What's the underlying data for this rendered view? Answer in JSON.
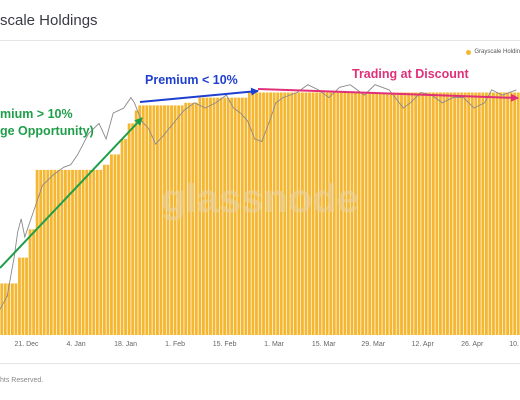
{
  "header": {
    "title": "scale Holdings"
  },
  "footer": {
    "text": "hts Reserved."
  },
  "watermark": "glassnode",
  "colors": {
    "bars": "#f5b731",
    "line": "#8a8a8a",
    "arrow_green": "#1f9e4a",
    "arrow_blue": "#1f3fcf",
    "arrow_pink": "#e0307a"
  },
  "annotations": [
    {
      "id": "premium-gt-10",
      "lines": [
        "mium > 10%",
        "ge Opportunity)"
      ],
      "color": "#1f9e4a"
    },
    {
      "id": "premium-lt-10",
      "lines": [
        "Premium < 10%"
      ],
      "color": "#1f3fcf"
    },
    {
      "id": "discount",
      "lines": [
        "Trading at Discount"
      ],
      "color": "#e0307a"
    }
  ],
  "chart_data": {
    "type": "bar",
    "legend": {
      "entries": [
        "Grayscale Holdin"
      ],
      "placement": "top-right"
    },
    "x_tick_labels": [
      "21. Dec",
      "4. Jan",
      "18. Jan",
      "1. Feb",
      "15. Feb",
      "1. Mar",
      "15. Mar",
      "29. Mar",
      "12. Apr",
      "26. Apr",
      "10."
    ],
    "x_day_range": [
      0,
      146
    ],
    "x_tick_days": [
      7,
      21,
      35,
      49,
      63,
      77,
      91,
      105,
      119,
      133,
      147
    ],
    "y_scale": "relative (no y-axis labels visible)",
    "bar_levels": [
      {
        "from_day": 0,
        "to_day": 5,
        "level": 0.2
      },
      {
        "from_day": 5,
        "to_day": 8,
        "level": 0.3
      },
      {
        "from_day": 8,
        "to_day": 10,
        "level": 0.41
      },
      {
        "from_day": 10,
        "to_day": 29,
        "level": 0.64
      },
      {
        "from_day": 29,
        "to_day": 31,
        "level": 0.66
      },
      {
        "from_day": 31,
        "to_day": 34,
        "level": 0.7
      },
      {
        "from_day": 34,
        "to_day": 36,
        "level": 0.76
      },
      {
        "from_day": 36,
        "to_day": 38,
        "level": 0.82
      },
      {
        "from_day": 38,
        "to_day": 39,
        "level": 0.87
      },
      {
        "from_day": 39,
        "to_day": 52,
        "level": 0.89
      },
      {
        "from_day": 52,
        "to_day": 56,
        "level": 0.9
      },
      {
        "from_day": 56,
        "to_day": 70,
        "level": 0.92
      },
      {
        "from_day": 70,
        "to_day": 146,
        "level": 0.94
      }
    ],
    "line_series": [
      [
        0,
        0.1
      ],
      [
        2,
        0.15
      ],
      [
        4,
        0.3
      ],
      [
        5,
        0.4
      ],
      [
        6,
        0.45
      ],
      [
        7,
        0.38
      ],
      [
        8,
        0.42
      ],
      [
        10,
        0.5
      ],
      [
        12,
        0.58
      ],
      [
        15,
        0.62
      ],
      [
        18,
        0.65
      ],
      [
        20,
        0.66
      ],
      [
        22,
        0.7
      ],
      [
        25,
        0.78
      ],
      [
        28,
        0.82
      ],
      [
        30,
        0.76
      ],
      [
        32,
        0.86
      ],
      [
        35,
        0.88
      ],
      [
        37,
        0.92
      ],
      [
        38,
        0.9
      ],
      [
        40,
        0.83
      ],
      [
        42,
        0.8
      ],
      [
        44,
        0.74
      ],
      [
        46,
        0.77
      ],
      [
        49,
        0.82
      ],
      [
        52,
        0.87
      ],
      [
        55,
        0.9
      ],
      [
        58,
        0.88
      ],
      [
        61,
        0.9
      ],
      [
        64,
        0.93
      ],
      [
        66,
        0.88
      ],
      [
        68,
        0.86
      ],
      [
        70,
        0.83
      ],
      [
        72,
        0.76
      ],
      [
        74,
        0.75
      ],
      [
        76,
        0.82
      ],
      [
        78,
        0.9
      ],
      [
        80,
        0.92
      ],
      [
        84,
        0.94
      ],
      [
        87,
        0.97
      ],
      [
        90,
        0.95
      ],
      [
        93,
        0.92
      ],
      [
        96,
        0.96
      ],
      [
        99,
        0.97
      ],
      [
        103,
        0.93
      ],
      [
        106,
        0.97
      ],
      [
        110,
        0.95
      ],
      [
        114,
        0.88
      ],
      [
        116,
        0.9
      ],
      [
        119,
        0.94
      ],
      [
        122,
        0.93
      ],
      [
        125,
        0.9
      ],
      [
        128,
        0.92
      ],
      [
        131,
        0.92
      ],
      [
        134,
        0.88
      ],
      [
        137,
        0.9
      ],
      [
        139,
        0.95
      ],
      [
        142,
        0.93
      ],
      [
        146,
        0.95
      ]
    ]
  }
}
